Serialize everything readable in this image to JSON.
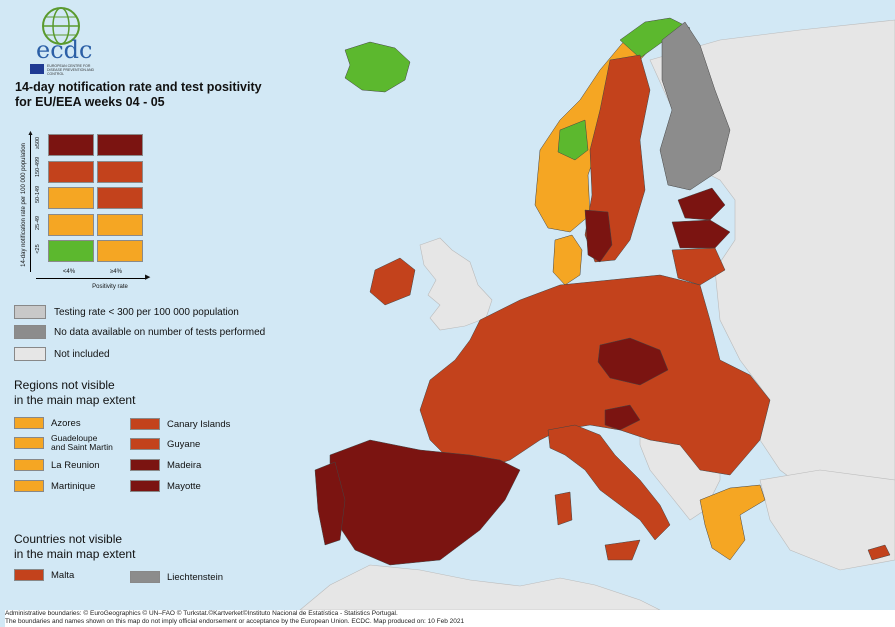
{
  "colors": {
    "sea": "#d2e8f5",
    "not_included": "#e6e6e6",
    "no_data": "#8c8c8c",
    "low_testing": "#c8c8c8",
    "green": "#5cb82e",
    "orange": "#f5a623",
    "red_orange": "#c3421c",
    "dark_red": "#7b1411"
  },
  "logo": {
    "text": "ecdc",
    "caption": "EUROPEAN CENTRE FOR DISEASE PREVENTION AND CONTROL"
  },
  "title": {
    "line1": "14-day notification rate and test positivity",
    "line2": "for EU/EEA weeks 04 - 05"
  },
  "matrix": {
    "y_label": "14-day notification rate per 100 000 population",
    "x_label": "Positivity rate",
    "y_ticks": [
      "≥500",
      "150-499",
      "50-149",
      "25-49",
      "<25"
    ],
    "x_ticks": [
      "<4%",
      "≥4%"
    ],
    "cells": [
      [
        "dark_red",
        "dark_red"
      ],
      [
        "red_orange",
        "red_orange"
      ],
      [
        "orange",
        "red_orange"
      ],
      [
        "orange",
        "orange"
      ],
      [
        "green",
        "orange"
      ]
    ]
  },
  "legend": {
    "low_testing": "Testing rate < 300 per 100 000 population",
    "no_data": "No data available on number of tests performed",
    "not_included": "Not included"
  },
  "regions": {
    "heading_line1": "Regions not visible",
    "heading_line2": "in the main map extent",
    "items": [
      {
        "label": "Azores",
        "color": "orange"
      },
      {
        "label_line1": "Guadeloupe",
        "label_line2": "and Saint Martin",
        "color": "orange"
      },
      {
        "label": "La Reunion",
        "color": "orange"
      },
      {
        "label": "Martinique",
        "color": "orange"
      },
      {
        "label": "Canary Islands",
        "color": "red_orange"
      },
      {
        "label": "Guyane",
        "color": "red_orange"
      },
      {
        "label": "Madeira",
        "color": "dark_red"
      },
      {
        "label": "Mayotte",
        "color": "dark_red"
      }
    ]
  },
  "countries": {
    "heading_line1": "Countries not visible",
    "heading_line2": "in the main map extent",
    "malta": "Malta",
    "liechtenstein": "Liechtenstein"
  },
  "footer": {
    "line1": "Administrative boundaries: © EuroGeographics © UN–FAO © Turkstat.©Kartverket©Instituto Nacional de Estatística - Statistics Portugal.",
    "line2": "The boundaries and names shown on this map do not imply official endorsement or acceptance by the European Union. ECDC. Map produced on: 10 Feb 2021"
  }
}
